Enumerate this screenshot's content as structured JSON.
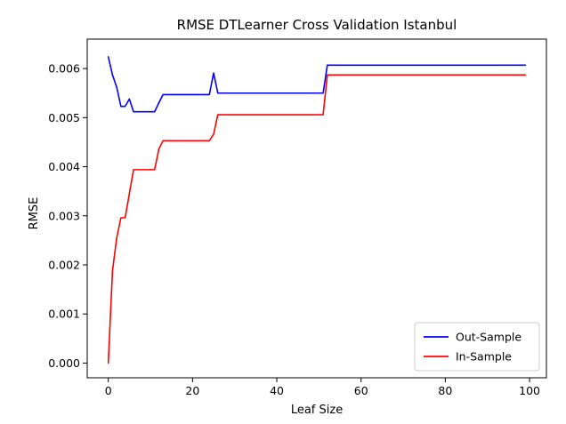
{
  "chart_data": {
    "type": "line",
    "title": "RMSE DTLearner Cross Validation Istanbul",
    "xlabel": "Leaf Size",
    "ylabel": "RMSE",
    "xlim": [
      -5,
      104
    ],
    "ylim": [
      -0.0003,
      0.0066
    ],
    "xticks": [
      0,
      20,
      40,
      60,
      80,
      100
    ],
    "xtick_labels": [
      "0",
      "20",
      "40",
      "60",
      "80",
      "100"
    ],
    "yticks": [
      0.0,
      0.001,
      0.002,
      0.003,
      0.004,
      0.005,
      0.006
    ],
    "ytick_labels": [
      "0.000",
      "0.001",
      "0.002",
      "0.003",
      "0.004",
      "0.005",
      "0.006"
    ],
    "grid": false,
    "legend_position": "lower-right",
    "series": [
      {
        "name": "Out-Sample",
        "color": "#0000ff",
        "x": [
          0,
          1,
          2,
          3,
          4,
          5,
          6,
          7,
          8,
          9,
          10,
          11,
          12,
          13,
          14,
          15,
          16,
          17,
          18,
          19,
          20,
          21,
          22,
          23,
          24,
          25,
          26,
          27,
          28,
          29,
          30,
          31,
          32,
          33,
          34,
          35,
          36,
          37,
          38,
          39,
          40,
          41,
          42,
          43,
          44,
          45,
          46,
          47,
          48,
          49,
          50,
          51,
          52,
          53,
          54,
          55,
          56,
          57,
          58,
          59,
          60,
          61,
          62,
          63,
          64,
          65,
          66,
          67,
          68,
          69,
          70,
          71,
          72,
          73,
          74,
          75,
          76,
          77,
          78,
          79,
          80,
          81,
          82,
          83,
          84,
          85,
          86,
          87,
          88,
          89,
          90,
          91,
          92,
          93,
          94,
          95,
          96,
          97,
          98,
          99
        ],
        "y": [
          0.00624,
          0.00587,
          0.00562,
          0.00523,
          0.00523,
          0.00538,
          0.00512,
          0.00512,
          0.00512,
          0.00512,
          0.00512,
          0.00512,
          0.0053,
          0.00547,
          0.00547,
          0.00547,
          0.00547,
          0.00547,
          0.00547,
          0.00547,
          0.00547,
          0.00547,
          0.00547,
          0.00547,
          0.00547,
          0.00591,
          0.0055,
          0.0055,
          0.0055,
          0.0055,
          0.0055,
          0.0055,
          0.0055,
          0.0055,
          0.0055,
          0.0055,
          0.0055,
          0.0055,
          0.0055,
          0.0055,
          0.0055,
          0.0055,
          0.0055,
          0.0055,
          0.0055,
          0.0055,
          0.0055,
          0.0055,
          0.0055,
          0.0055,
          0.0055,
          0.0055,
          0.00607,
          0.00607,
          0.00607,
          0.00607,
          0.00607,
          0.00607,
          0.00607,
          0.00607,
          0.00607,
          0.00607,
          0.00607,
          0.00607,
          0.00607,
          0.00607,
          0.00607,
          0.00607,
          0.00607,
          0.00607,
          0.00607,
          0.00607,
          0.00607,
          0.00607,
          0.00607,
          0.00607,
          0.00607,
          0.00607,
          0.00607,
          0.00607,
          0.00607,
          0.00607,
          0.00607,
          0.00607,
          0.00607,
          0.00607,
          0.00607,
          0.00607,
          0.00607,
          0.00607,
          0.00607,
          0.00607,
          0.00607,
          0.00607,
          0.00607,
          0.00607,
          0.00607,
          0.00607,
          0.00607,
          0.00607
        ]
      },
      {
        "name": "In-Sample",
        "color": "#ff0000",
        "x": [
          0,
          1,
          2,
          3,
          4,
          5,
          6,
          7,
          8,
          9,
          10,
          11,
          12,
          13,
          14,
          15,
          16,
          17,
          18,
          19,
          20,
          21,
          22,
          23,
          24,
          25,
          26,
          27,
          28,
          29,
          30,
          31,
          32,
          33,
          34,
          35,
          36,
          37,
          38,
          39,
          40,
          41,
          42,
          43,
          44,
          45,
          46,
          47,
          48,
          49,
          50,
          51,
          52,
          53,
          54,
          55,
          56,
          57,
          58,
          59,
          60,
          61,
          62,
          63,
          64,
          65,
          66,
          67,
          68,
          69,
          70,
          71,
          72,
          73,
          74,
          75,
          76,
          77,
          78,
          79,
          80,
          81,
          82,
          83,
          84,
          85,
          86,
          87,
          88,
          89,
          90,
          91,
          92,
          93,
          94,
          95,
          96,
          97,
          98,
          99
        ],
        "y": [
          0.0,
          0.00188,
          0.00255,
          0.00296,
          0.00296,
          0.00345,
          0.00394,
          0.00394,
          0.00394,
          0.00394,
          0.00394,
          0.00394,
          0.00436,
          0.00453,
          0.00453,
          0.00453,
          0.00453,
          0.00453,
          0.00453,
          0.00453,
          0.00453,
          0.00453,
          0.00453,
          0.00453,
          0.00453,
          0.00466,
          0.00506,
          0.00506,
          0.00506,
          0.00506,
          0.00506,
          0.00506,
          0.00506,
          0.00506,
          0.00506,
          0.00506,
          0.00506,
          0.00506,
          0.00506,
          0.00506,
          0.00506,
          0.00506,
          0.00506,
          0.00506,
          0.00506,
          0.00506,
          0.00506,
          0.00506,
          0.00506,
          0.00506,
          0.00506,
          0.00506,
          0.00587,
          0.00587,
          0.00587,
          0.00587,
          0.00587,
          0.00587,
          0.00587,
          0.00587,
          0.00587,
          0.00587,
          0.00587,
          0.00587,
          0.00587,
          0.00587,
          0.00587,
          0.00587,
          0.00587,
          0.00587,
          0.00587,
          0.00587,
          0.00587,
          0.00587,
          0.00587,
          0.00587,
          0.00587,
          0.00587,
          0.00587,
          0.00587,
          0.00587,
          0.00587,
          0.00587,
          0.00587,
          0.00587,
          0.00587,
          0.00587,
          0.00587,
          0.00587,
          0.00587,
          0.00587,
          0.00587,
          0.00587,
          0.00587,
          0.00587,
          0.00587,
          0.00587,
          0.00587,
          0.00587,
          0.00587
        ]
      }
    ]
  }
}
